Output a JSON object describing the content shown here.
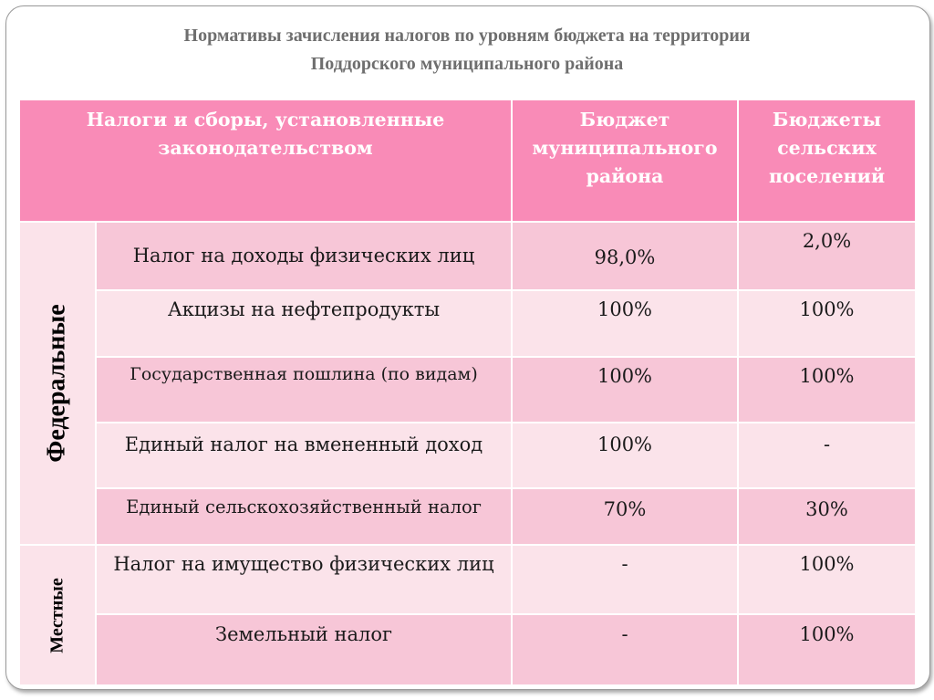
{
  "title": {
    "line1": "Нормативы зачисления налогов по уровням бюджета на территории",
    "line2": "Поддорского муниципального района"
  },
  "header": {
    "col1": "Налоги и сборы, установленные законодательством",
    "col2": "Бюджет муниципального района",
    "col3": "Бюджеты сельских поселений"
  },
  "groups": {
    "federal": "Федеральные",
    "local": "Местные"
  },
  "rows": [
    {
      "name": "Налог на доходы физических лиц",
      "municipal": "98,0%",
      "rural": "2,0%"
    },
    {
      "name": "Акцизы на нефтепродукты",
      "municipal": "100%",
      "rural": "100%"
    },
    {
      "name": "Государственная пошлина (по видам)",
      "municipal": "100%",
      "rural": "100%"
    },
    {
      "name": "Единый налог на вмененный доход",
      "municipal": "100%",
      "rural": "-"
    },
    {
      "name": "Единый сельскохозяйственный налог",
      "municipal": "70%",
      "rural": "30%"
    },
    {
      "name": "Налог на имущество физических лиц",
      "municipal": "-",
      "rural": "100%"
    },
    {
      "name": "Земельный налог",
      "municipal": "-",
      "rural": "100%"
    }
  ]
}
